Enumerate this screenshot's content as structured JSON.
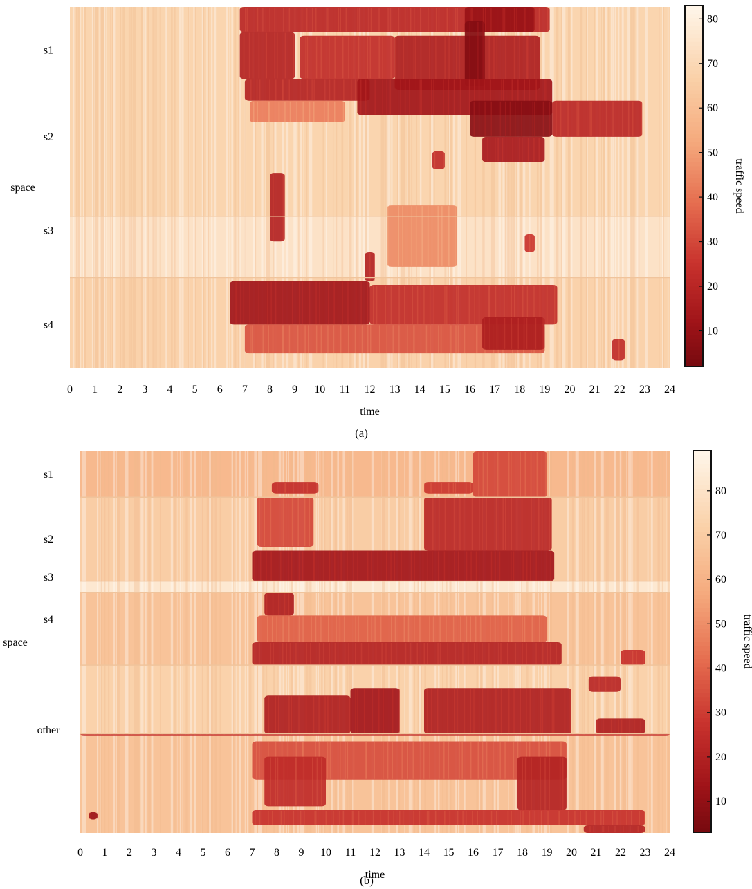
{
  "chart_data": [
    {
      "type": "heatmap",
      "panel_label": "(a)",
      "xlabel": "time",
      "ylabel": "space",
      "x_ticks": [
        "0",
        "1",
        "2",
        "3",
        "4",
        "5",
        "6",
        "7",
        "8",
        "9",
        "10",
        "11",
        "12",
        "13",
        "14",
        "15",
        "16",
        "17",
        "18",
        "19",
        "20",
        "21",
        "22",
        "23",
        "24"
      ],
      "xlim": [
        0,
        24
      ],
      "space_labels": [
        {
          "label": "s1",
          "pos": 0.12
        },
        {
          "label": "s2",
          "pos": 0.36
        },
        {
          "label": "s3",
          "pos": 0.62
        },
        {
          "label": "s4",
          "pos": 0.88
        }
      ],
      "space_segment_boundaries": [
        0.58,
        0.75
      ],
      "colorbar": {
        "label": "traffic speed",
        "ticks": [
          10,
          20,
          30,
          40,
          50,
          60,
          70,
          80
        ],
        "range": [
          2,
          83
        ]
      },
      "base_speed": 66,
      "free_flow_bands": [
        {
          "y": [
            0.0,
            0.58
          ],
          "speed": 68
        },
        {
          "y": [
            0.58,
            0.75
          ],
          "speed": 74
        },
        {
          "y": [
            0.75,
            1.0
          ],
          "speed": 67
        }
      ],
      "congestion_regions": [
        {
          "x": [
            6.8,
            19.2
          ],
          "y": [
            0.0,
            0.07
          ],
          "speed": 20
        },
        {
          "x": [
            15.8,
            18.6
          ],
          "y": [
            0.0,
            0.07
          ],
          "speed": 10
        },
        {
          "x": [
            6.8,
            9.0
          ],
          "y": [
            0.07,
            0.2
          ],
          "speed": 18
        },
        {
          "x": [
            9.2,
            13.0
          ],
          "y": [
            0.08,
            0.2
          ],
          "speed": 22
        },
        {
          "x": [
            13.0,
            18.8
          ],
          "y": [
            0.08,
            0.23
          ],
          "speed": 16
        },
        {
          "x": [
            15.8,
            16.6
          ],
          "y": [
            0.04,
            0.22
          ],
          "speed": 5
        },
        {
          "x": [
            7.0,
            12.0
          ],
          "y": [
            0.2,
            0.26
          ],
          "speed": 18
        },
        {
          "x": [
            11.5,
            19.3
          ],
          "y": [
            0.2,
            0.3
          ],
          "speed": 12
        },
        {
          "x": [
            16.0,
            19.3
          ],
          "y": [
            0.26,
            0.36
          ],
          "speed": 6
        },
        {
          "x": [
            19.3,
            22.9
          ],
          "y": [
            0.26,
            0.36
          ],
          "speed": 20
        },
        {
          "x": [
            16.5,
            19.0
          ],
          "y": [
            0.36,
            0.43
          ],
          "speed": 14
        },
        {
          "x": [
            7.2,
            11.0
          ],
          "y": [
            0.26,
            0.32
          ],
          "speed": 42
        },
        {
          "x": [
            14.5,
            15.0
          ],
          "y": [
            0.4,
            0.45
          ],
          "speed": 22
        },
        {
          "x": [
            8.0,
            8.6
          ],
          "y": [
            0.46,
            0.65
          ],
          "speed": 18
        },
        {
          "x": [
            12.7,
            15.5
          ],
          "y": [
            0.55,
            0.72
          ],
          "speed": 45
        },
        {
          "x": [
            18.2,
            18.6
          ],
          "y": [
            0.63,
            0.68
          ],
          "speed": 25
        },
        {
          "x": [
            11.8,
            12.2
          ],
          "y": [
            0.68,
            0.76
          ],
          "speed": 18
        },
        {
          "x": [
            6.4,
            12.0
          ],
          "y": [
            0.76,
            0.88
          ],
          "speed": 12
        },
        {
          "x": [
            12.0,
            19.5
          ],
          "y": [
            0.77,
            0.88
          ],
          "speed": 22
        },
        {
          "x": [
            7.0,
            19.0
          ],
          "y": [
            0.88,
            0.96
          ],
          "speed": 32
        },
        {
          "x": [
            16.5,
            19.0
          ],
          "y": [
            0.86,
            0.95
          ],
          "speed": 16
        },
        {
          "x": [
            21.7,
            22.2
          ],
          "y": [
            0.92,
            0.98
          ],
          "speed": 22
        }
      ]
    },
    {
      "type": "heatmap",
      "panel_label": "(b)",
      "xlabel": "time",
      "ylabel": "space",
      "x_ticks": [
        "0",
        "1",
        "2",
        "3",
        "4",
        "5",
        "6",
        "7",
        "8",
        "9",
        "10",
        "11",
        "12",
        "13",
        "14",
        "15",
        "16",
        "17",
        "18",
        "19",
        "20",
        "21",
        "22",
        "23",
        "24"
      ],
      "xlim": [
        0,
        24
      ],
      "space_labels": [
        {
          "label": "s1",
          "pos": 0.06
        },
        {
          "label": "s2",
          "pos": 0.23
        },
        {
          "label": "s3",
          "pos": 0.33
        },
        {
          "label": "s4",
          "pos": 0.44
        },
        {
          "label": "other",
          "pos": 0.73
        }
      ],
      "space_segment_boundaries": [
        0.12,
        0.34,
        0.37,
        0.56,
        0.74
      ],
      "colorbar": {
        "label": "traffic speed",
        "ticks": [
          10,
          20,
          30,
          40,
          50,
          60,
          70,
          80
        ],
        "range": [
          3,
          89
        ]
      },
      "base_speed": 68,
      "free_flow_bands": [
        {
          "y": [
            0.0,
            0.12
          ],
          "speed": 62
        },
        {
          "y": [
            0.12,
            0.34
          ],
          "speed": 70
        },
        {
          "y": [
            0.34,
            0.37
          ],
          "speed": 82
        },
        {
          "y": [
            0.37,
            0.56
          ],
          "speed": 66
        },
        {
          "y": [
            0.56,
            0.74
          ],
          "speed": 72
        },
        {
          "y": [
            0.74,
            1.0
          ],
          "speed": 66
        }
      ],
      "congestion_regions": [
        {
          "x": [
            7.8,
            9.7
          ],
          "y": [
            0.08,
            0.11
          ],
          "speed": 25
        },
        {
          "x": [
            14.0,
            16.0
          ],
          "y": [
            0.08,
            0.11
          ],
          "speed": 28
        },
        {
          "x": [
            16.0,
            19.0
          ],
          "y": [
            0.0,
            0.12
          ],
          "speed": 32
        },
        {
          "x": [
            7.2,
            9.5
          ],
          "y": [
            0.12,
            0.25
          ],
          "speed": 32
        },
        {
          "x": [
            14.0,
            19.2
          ],
          "y": [
            0.12,
            0.26
          ],
          "speed": 22
        },
        {
          "x": [
            7.0,
            19.3
          ],
          "y": [
            0.26,
            0.34
          ],
          "speed": 14
        },
        {
          "x": [
            7.5,
            8.7
          ],
          "y": [
            0.37,
            0.43
          ],
          "speed": 18
        },
        {
          "x": [
            7.2,
            19.0
          ],
          "y": [
            0.43,
            0.5
          ],
          "speed": 38
        },
        {
          "x": [
            7.0,
            19.6
          ],
          "y": [
            0.5,
            0.56
          ],
          "speed": 20
        },
        {
          "x": [
            22.0,
            23.0
          ],
          "y": [
            0.52,
            0.56
          ],
          "speed": 26
        },
        {
          "x": [
            7.5,
            11.0
          ],
          "y": [
            0.64,
            0.74
          ],
          "speed": 18
        },
        {
          "x": [
            11.0,
            13.0
          ],
          "y": [
            0.62,
            0.74
          ],
          "speed": 14
        },
        {
          "x": [
            14.0,
            20.0
          ],
          "y": [
            0.62,
            0.74
          ],
          "speed": 18
        },
        {
          "x": [
            20.7,
            22.0
          ],
          "y": [
            0.59,
            0.63
          ],
          "speed": 22
        },
        {
          "x": [
            21.0,
            23.0
          ],
          "y": [
            0.7,
            0.74
          ],
          "speed": 18
        },
        {
          "x": [
            7.0,
            19.8
          ],
          "y": [
            0.76,
            0.86
          ],
          "speed": 34
        },
        {
          "x": [
            7.5,
            10.0
          ],
          "y": [
            0.8,
            0.93
          ],
          "speed": 24
        },
        {
          "x": [
            17.8,
            19.8
          ],
          "y": [
            0.8,
            0.94
          ],
          "speed": 20
        },
        {
          "x": [
            7.0,
            23.0
          ],
          "y": [
            0.94,
            0.98
          ],
          "speed": 26
        },
        {
          "x": [
            20.5,
            23.0
          ],
          "y": [
            0.98,
            1.0
          ],
          "speed": 20
        },
        {
          "x": [
            0.0,
            24.0
          ],
          "y": [
            0.738,
            0.744
          ],
          "speed": 25
        },
        {
          "x": [
            0.35,
            0.7
          ],
          "y": [
            0.945,
            0.965
          ],
          "speed": 12
        }
      ]
    }
  ]
}
